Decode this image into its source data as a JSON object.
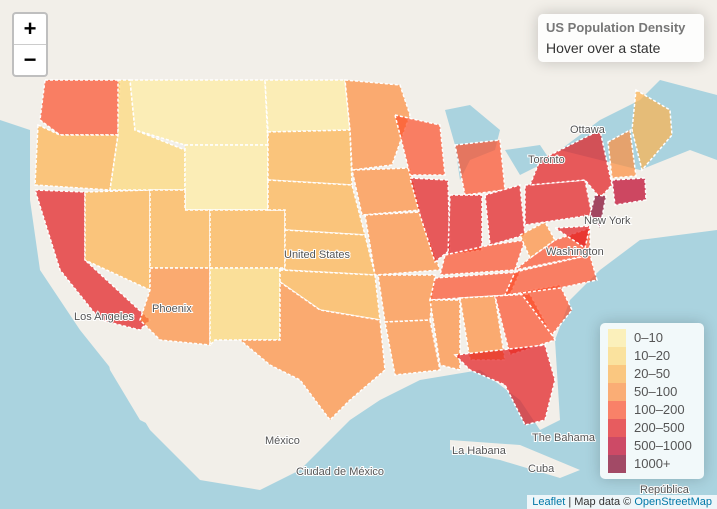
{
  "zoom": {
    "in": "+",
    "out": "−"
  },
  "info": {
    "title": "US Population Density",
    "text": "Hover over a state"
  },
  "legend": [
    {
      "label": "0–10",
      "color": "#FFEDA0"
    },
    {
      "label": "10–20",
      "color": "#FED976"
    },
    {
      "label": "20–50",
      "color": "#FEB24C"
    },
    {
      "label": "50–100",
      "color": "#FD8D3C"
    },
    {
      "label": "100–200",
      "color": "#FC4E2A"
    },
    {
      "label": "200–500",
      "color": "#E31A1C"
    },
    {
      "label": "500–1000",
      "color": "#BD0026"
    },
    {
      "label": "1000+",
      "color": "#800026"
    }
  ],
  "places": [
    "Ottawa",
    "Toronto",
    "New York",
    "Washington",
    "United States",
    "Phoenix",
    "Los Angeles",
    "México",
    "Ciudad de México",
    "La Habana",
    "The Bahama",
    "Cuba",
    "República"
  ],
  "attribution": {
    "leaflet": "Leaflet",
    "text": "| Map data ©",
    "osm": "OpenStreetMap"
  }
}
